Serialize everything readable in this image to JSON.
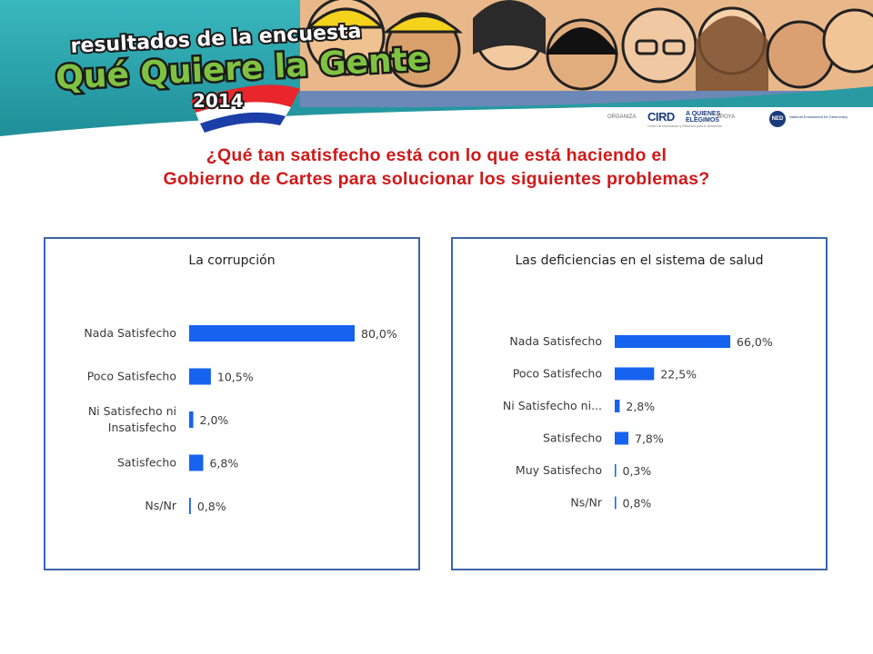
{
  "banner": {
    "line1": "resultados de la encuesta",
    "line2": "Qué Quiere la Gente",
    "year": "2014",
    "colors": {
      "sky": "#2aa0a8",
      "title_green": "#7fc241",
      "title_white": "#ffffff",
      "outline": "#1a1a1a"
    }
  },
  "sponsors": {
    "organiza_label": "ORGANIZA",
    "ird": "CIRD",
    "ird_sub": "Centro de Información y Recursos para el Desarrollo",
    "aqe": "A QUIENES ELEGIMOS",
    "apoya_label": "APOYA",
    "ned": "NED",
    "ned_text": "National Endowment for Democracy"
  },
  "question": {
    "line1": "¿Qué tan satisfecho está con lo que está haciendo el",
    "line2": "Gobierno de Cartes para solucionar los siguientes problemas?"
  },
  "colors": {
    "bar": "#1663f0",
    "border": "#3e65a8",
    "question_red": "#d01919"
  },
  "chart_data": [
    {
      "type": "bar",
      "orientation": "horizontal",
      "title": "La corrupción",
      "categories": [
        "Nada Satisfecho",
        "Poco Satisfecho",
        "Ni Satisfecho ni Insatisfecho",
        "Satisfecho",
        "Ns/Nr"
      ],
      "category_lines": [
        [
          "Nada Satisfecho"
        ],
        [
          "Poco Satisfecho"
        ],
        [
          "Ni Satisfecho ni",
          "Insatisfecho"
        ],
        [
          "Satisfecho"
        ],
        [
          "Ns/Nr"
        ]
      ],
      "values": [
        80.0,
        10.5,
        2.0,
        6.8,
        0.8
      ],
      "value_labels": [
        "80,0%",
        "10,5%",
        "2,0%",
        "6,8%",
        "0,8%"
      ],
      "xlim": [
        0,
        80
      ],
      "grid": false,
      "legend": "none"
    },
    {
      "type": "bar",
      "orientation": "horizontal",
      "title": "Las deficiencias en el sistema de salud",
      "categories": [
        "Nada Satisfecho",
        "Poco Satisfecho",
        "Ni Satisfecho ni...",
        "Satisfecho",
        "Muy Satisfecho",
        "Ns/Nr"
      ],
      "category_lines": [
        [
          "Nada Satisfecho"
        ],
        [
          "Poco Satisfecho"
        ],
        [
          "Ni Satisfecho ni..."
        ],
        [
          "Satisfecho"
        ],
        [
          "Muy Satisfecho"
        ],
        [
          "Ns/Nr"
        ]
      ],
      "values": [
        66.0,
        22.5,
        2.8,
        7.8,
        0.3,
        0.8
      ],
      "value_labels": [
        "66,0%",
        "22,5%",
        "2,8%",
        "7,8%",
        "0,3%",
        "0,8%"
      ],
      "xlim": [
        0,
        80
      ],
      "grid": false,
      "legend": "none"
    }
  ]
}
